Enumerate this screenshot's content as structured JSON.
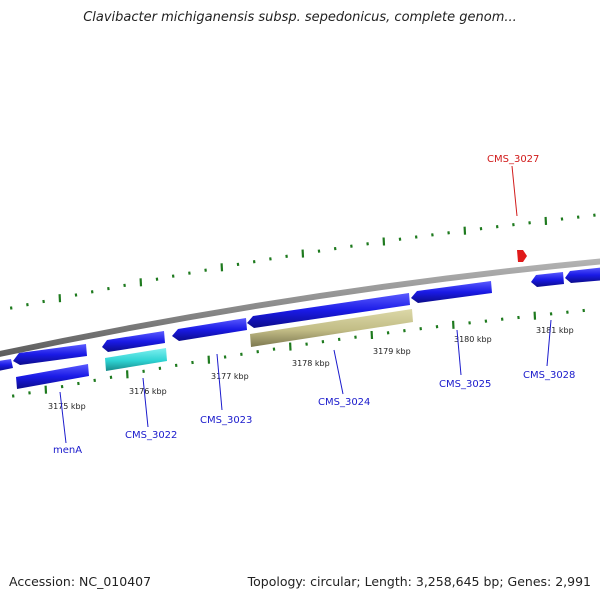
{
  "title": "Clavibacter michiganensis subsp. sepedonicus, complete genom...",
  "footer": {
    "accession": "Accession: NC_010407",
    "stats": "Topology: circular; Length: 3,258,645 bp; Genes: 2,991"
  },
  "colors": {
    "background": "#ffffff",
    "backbone": "#8a8a8a",
    "gene": "#1a1ae6",
    "gene_cyan": "#2ed3d3",
    "gene_khaki": "#c2bd86",
    "tick": "#1e7a1e",
    "label_blue": "#1a1acc",
    "label_red": "#d11a1a"
  },
  "ruler_labels": [
    "3175 kbp",
    "3176 kbp",
    "3177 kbp",
    "3178 kbp",
    "3179 kbp",
    "3180 kbp",
    "3181 kbp"
  ],
  "gene_labels": [
    "menA",
    "CMS_3022",
    "CMS_3023",
    "CMS_3024",
    "CMS_3025",
    "CMS_3028",
    "CMS_3027"
  ]
}
